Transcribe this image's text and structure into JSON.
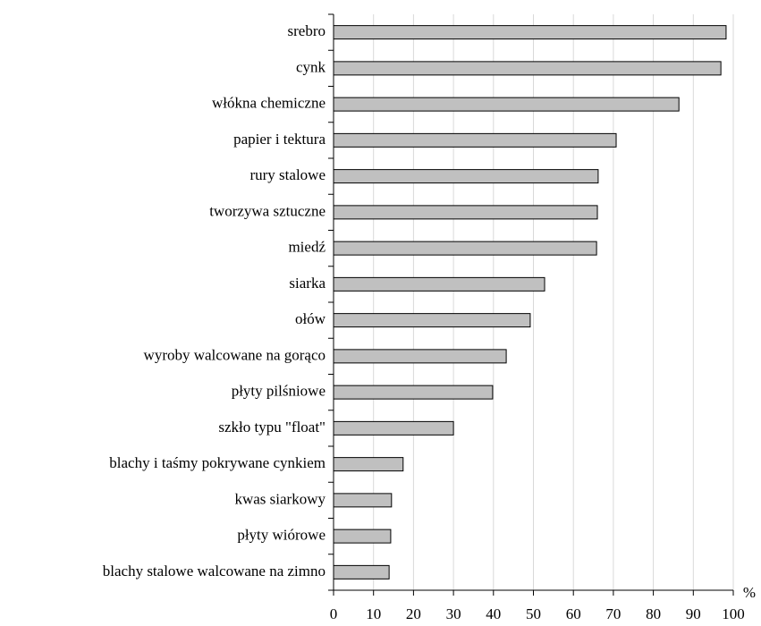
{
  "chart_data": {
    "type": "bar",
    "orientation": "horizontal",
    "categories": [
      "srebro",
      "cynk",
      "włókna chemiczne",
      "papier i tektura",
      "rury stalowe",
      "tworzywa sztuczne",
      "miedź",
      "siarka",
      "ołów",
      "wyroby walcowane na gorąco",
      "płyty pilśniowe",
      "szkło typu \"float\"",
      "blachy i taśmy pokrywane cynkiem",
      "kwas siarkowy",
      "płyty wiórowe",
      "blachy stalowe walcowane na zimno"
    ],
    "values": [
      98.2,
      96.9,
      86.4,
      70.7,
      66.2,
      66.0,
      65.8,
      52.8,
      49.2,
      43.2,
      39.8,
      30.0,
      17.4,
      14.5,
      14.3,
      13.9
    ],
    "color": "#c0c0c0",
    "x_unit": "%",
    "xlim": [
      0,
      100
    ],
    "xticks": [
      0,
      10,
      20,
      30,
      40,
      50,
      60,
      70,
      80,
      90,
      100
    ],
    "grid": true
  }
}
